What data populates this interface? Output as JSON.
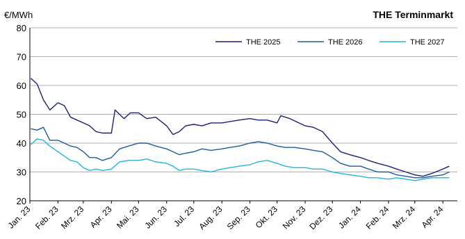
{
  "chart_data": {
    "type": "line",
    "title": "THE Terminmarkt",
    "ylabel": "€/MWh",
    "ylim": [
      20,
      80
    ],
    "yticks": [
      20,
      30,
      40,
      50,
      60,
      70,
      80
    ],
    "grid": true,
    "legend_position": "top-right",
    "x_labels": [
      "Jan. 23",
      "Feb. 23",
      "Mrz. 23",
      "Apr. 23",
      "Mai. 23",
      "Jun. 23",
      "Jul. 23",
      "Aug. 23",
      "Sep. 23",
      "Okt. 23",
      "Nov. 23",
      "Dez. 23",
      "Jan. 24",
      "Feb. 24",
      "Mrz. 24",
      "Apr. 24"
    ],
    "series": [
      {
        "name": "THE 2025",
        "color": "#1a1f7a",
        "x": [
          "2023-01-02",
          "2023-01-09",
          "2023-01-16",
          "2023-01-23",
          "2023-02-01",
          "2023-02-08",
          "2023-02-15",
          "2023-02-22",
          "2023-03-01",
          "2023-03-08",
          "2023-03-15",
          "2023-03-22",
          "2023-04-01",
          "2023-04-05",
          "2023-04-15",
          "2023-04-22",
          "2023-05-01",
          "2023-05-10",
          "2023-05-20",
          "2023-06-01",
          "2023-06-08",
          "2023-06-15",
          "2023-06-22",
          "2023-07-01",
          "2023-07-10",
          "2023-07-20",
          "2023-08-01",
          "2023-08-10",
          "2023-08-20",
          "2023-09-01",
          "2023-09-10",
          "2023-09-20",
          "2023-10-01",
          "2023-10-05",
          "2023-10-15",
          "2023-10-25",
          "2023-11-01",
          "2023-11-10",
          "2023-11-20",
          "2023-12-01",
          "2023-12-10",
          "2023-12-20",
          "2024-01-01",
          "2024-01-10",
          "2024-01-20",
          "2024-02-01",
          "2024-02-10",
          "2024-02-20",
          "2024-03-01",
          "2024-03-10",
          "2024-03-20",
          "2024-04-01",
          "2024-04-08"
        ],
        "y": [
          62.5,
          60.5,
          55,
          51.5,
          54,
          53,
          49,
          48,
          47,
          46,
          44,
          43.5,
          43.5,
          51.5,
          48.5,
          50.5,
          50.5,
          48.5,
          49,
          46,
          43,
          44,
          46,
          46.5,
          46,
          47,
          47,
          47.5,
          48,
          48.5,
          48,
          48,
          47,
          49.5,
          48.5,
          47,
          46,
          45.5,
          44,
          40,
          37,
          36,
          35,
          34,
          33,
          32,
          31,
          30,
          29,
          28.5,
          29.5,
          31,
          32
        ]
      },
      {
        "name": "THE 2026",
        "color": "#1d5a9e",
        "x": [
          "2023-01-02",
          "2023-01-09",
          "2023-01-16",
          "2023-01-23",
          "2023-02-01",
          "2023-02-08",
          "2023-02-15",
          "2023-02-22",
          "2023-03-01",
          "2023-03-08",
          "2023-03-15",
          "2023-03-22",
          "2023-04-01",
          "2023-04-10",
          "2023-04-20",
          "2023-05-01",
          "2023-05-10",
          "2023-05-20",
          "2023-06-01",
          "2023-06-08",
          "2023-06-15",
          "2023-06-22",
          "2023-07-01",
          "2023-07-10",
          "2023-07-20",
          "2023-08-01",
          "2023-08-10",
          "2023-08-20",
          "2023-09-01",
          "2023-09-10",
          "2023-09-20",
          "2023-10-01",
          "2023-10-10",
          "2023-10-20",
          "2023-11-01",
          "2023-11-10",
          "2023-11-20",
          "2023-12-01",
          "2023-12-10",
          "2023-12-20",
          "2024-01-01",
          "2024-01-10",
          "2024-01-20",
          "2024-02-01",
          "2024-02-10",
          "2024-02-20",
          "2024-03-01",
          "2024-03-10",
          "2024-03-20",
          "2024-04-01",
          "2024-04-08"
        ],
        "y": [
          45,
          44.5,
          45.5,
          41,
          41,
          40,
          39,
          38.5,
          37,
          35,
          35,
          34,
          35,
          38,
          39,
          40,
          40,
          39,
          38,
          37,
          36,
          36.5,
          37,
          38,
          37.5,
          38,
          38.5,
          39,
          40,
          40.5,
          40,
          39,
          38.5,
          38.5,
          38,
          37.5,
          37,
          35,
          33,
          32,
          32,
          31,
          30,
          30,
          29,
          28.5,
          28,
          28,
          28.5,
          29,
          30
        ]
      },
      {
        "name": "THE 2027",
        "color": "#22b4e0",
        "x": [
          "2023-01-02",
          "2023-01-09",
          "2023-01-16",
          "2023-01-23",
          "2023-02-01",
          "2023-02-08",
          "2023-02-15",
          "2023-02-22",
          "2023-03-01",
          "2023-03-08",
          "2023-03-15",
          "2023-03-22",
          "2023-04-01",
          "2023-04-10",
          "2023-04-20",
          "2023-05-01",
          "2023-05-10",
          "2023-05-20",
          "2023-06-01",
          "2023-06-08",
          "2023-06-15",
          "2023-06-22",
          "2023-07-01",
          "2023-07-10",
          "2023-07-20",
          "2023-08-01",
          "2023-08-10",
          "2023-08-20",
          "2023-09-01",
          "2023-09-10",
          "2023-09-20",
          "2023-10-01",
          "2023-10-10",
          "2023-10-20",
          "2023-11-01",
          "2023-11-10",
          "2023-11-20",
          "2023-12-01",
          "2023-12-10",
          "2023-12-20",
          "2024-01-01",
          "2024-01-10",
          "2024-01-20",
          "2024-02-01",
          "2024-02-10",
          "2024-02-20",
          "2024-03-01",
          "2024-03-10",
          "2024-03-20",
          "2024-04-01",
          "2024-04-08"
        ],
        "y": [
          39.5,
          41.5,
          41,
          39,
          37,
          35.5,
          34,
          33.5,
          31.5,
          30.5,
          31,
          30.5,
          31,
          33.5,
          34,
          34,
          34.5,
          33.5,
          33,
          32,
          30.5,
          31,
          31,
          30.5,
          30,
          31,
          31.5,
          32,
          32.5,
          33.5,
          34,
          33,
          32,
          31.5,
          31.5,
          31,
          31,
          30,
          29.5,
          29,
          28.5,
          28,
          28,
          27.5,
          28,
          27.5,
          27,
          27.5,
          28,
          28,
          28
        ]
      }
    ]
  }
}
